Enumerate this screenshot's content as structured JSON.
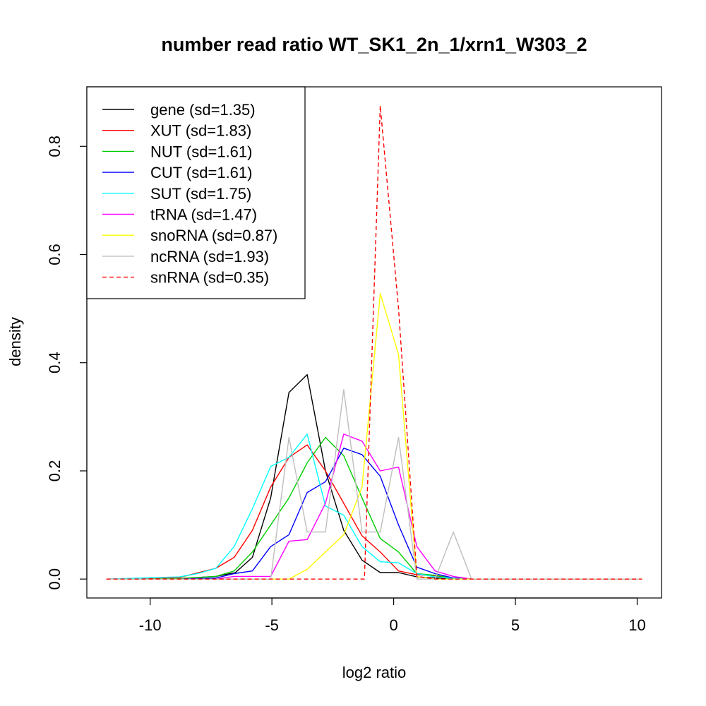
{
  "chart_data": {
    "type": "line",
    "title": "number read ratio WT_SK1_2n_1/xrn1_W303_2",
    "xlabel": "log2 ratio",
    "ylabel": "density",
    "xlim": [
      -12.6,
      11.0
    ],
    "ylim": [
      -0.035,
      0.91
    ],
    "xticks": [
      -10,
      -5,
      0,
      5,
      10
    ],
    "xtick_labels": [
      "-10",
      "-5",
      "0",
      "5",
      "10"
    ],
    "yticks": [
      0.0,
      0.2,
      0.4,
      0.6,
      0.8
    ],
    "ytick_labels": [
      "0.0",
      "0.2",
      "0.4",
      "0.6",
      "0.8"
    ],
    "grid": false,
    "legend_position": "top-left",
    "x": [
      -11.8,
      -11.05,
      -10.3,
      -9.55,
      -8.8,
      -8.05,
      -7.3,
      -6.55,
      -5.8,
      -5.05,
      -4.3,
      -3.55,
      -2.8,
      -2.05,
      -1.3,
      -0.55,
      0.2,
      0.95,
      1.7,
      2.45,
      3.2,
      3.95,
      4.7,
      5.45,
      6.2,
      6.95,
      7.7,
      8.45,
      9.2,
      9.95,
      10.2
    ],
    "series": [
      {
        "name": "gene (sd=1.35)",
        "color": "#000000",
        "dash": "solid",
        "x": [
          -11.8,
          -10,
          -8.8,
          -7.3,
          -6.5,
          -5.8,
          -5.05,
          -4.3,
          -3.55,
          -2.8,
          -2.05,
          -1.3,
          -0.55,
          0.2,
          0.95,
          1.7,
          2.45,
          3.2,
          10.2
        ],
        "values": [
          0.0,
          0.0,
          0.001,
          0.005,
          0.012,
          0.04,
          0.15,
          0.345,
          0.378,
          0.2,
          0.09,
          0.035,
          0.012,
          0.012,
          0.004,
          0.002,
          0.001,
          0.0,
          0.0
        ]
      },
      {
        "name": "XUT (sd=1.83)",
        "color": "#ff0000",
        "dash": "solid",
        "x": [
          -11.8,
          -10.3,
          -8.8,
          -7.3,
          -6.55,
          -5.8,
          -5.05,
          -4.3,
          -3.55,
          -2.8,
          -2.05,
          -1.3,
          -0.55,
          0.2,
          0.95,
          1.7,
          2.45,
          3.2,
          10.2
        ],
        "values": [
          0.0,
          0.001,
          0.003,
          0.02,
          0.04,
          0.09,
          0.17,
          0.225,
          0.248,
          0.2,
          0.14,
          0.08,
          0.05,
          0.015,
          0.008,
          0.006,
          0.002,
          0.0,
          0.0
        ]
      },
      {
        "name": "NUT (sd=1.61)",
        "color": "#00cd00",
        "dash": "solid",
        "x": [
          -11.8,
          -10.3,
          -8.8,
          -7.3,
          -6.55,
          -5.8,
          -5.05,
          -4.3,
          -3.55,
          -2.8,
          -2.05,
          -1.3,
          -0.55,
          0.2,
          0.95,
          1.7,
          2.45,
          3.2,
          10.2
        ],
        "values": [
          0.0,
          0.0,
          0.001,
          0.005,
          0.015,
          0.05,
          0.1,
          0.15,
          0.215,
          0.262,
          0.228,
          0.15,
          0.075,
          0.05,
          0.01,
          0.007,
          0.002,
          0.0,
          0.0
        ]
      },
      {
        "name": "CUT (sd=1.61)",
        "color": "#0000ff",
        "dash": "solid",
        "x": [
          -11.8,
          -10.3,
          -8.8,
          -7.3,
          -6.55,
          -5.8,
          -5.05,
          -4.3,
          -3.55,
          -2.8,
          -2.05,
          -1.3,
          -0.55,
          0.2,
          0.95,
          1.7,
          2.45,
          3.2,
          10.2
        ],
        "values": [
          0.0,
          0.0,
          0.0,
          0.002,
          0.01,
          0.015,
          0.06,
          0.082,
          0.16,
          0.18,
          0.242,
          0.23,
          0.19,
          0.1,
          0.022,
          0.01,
          0.002,
          0.0,
          0.0
        ]
      },
      {
        "name": "SUT (sd=1.75)",
        "color": "#00ffff",
        "dash": "solid",
        "x": [
          -11.8,
          -10.3,
          -8.8,
          -8.05,
          -7.3,
          -6.55,
          -5.8,
          -5.05,
          -4.3,
          -3.55,
          -2.8,
          -2.05,
          -1.3,
          -0.55,
          0.2,
          0.95,
          1.7,
          2.45,
          3.2,
          10.2
        ],
        "values": [
          0.0,
          0.002,
          0.004,
          0.01,
          0.02,
          0.06,
          0.13,
          0.208,
          0.225,
          0.268,
          0.135,
          0.118,
          0.06,
          0.032,
          0.03,
          0.01,
          0.004,
          0.001,
          0.0,
          0.0
        ]
      },
      {
        "name": "tRNA (sd=1.47)",
        "color": "#ff00ff",
        "dash": "solid",
        "x": [
          -11.8,
          -7.3,
          -6.55,
          -5.8,
          -5.05,
          -4.3,
          -3.55,
          -2.8,
          -2.05,
          -1.3,
          -0.55,
          0.2,
          0.95,
          1.7,
          2.45,
          3.2,
          10.2
        ],
        "values": [
          0.0,
          0.0,
          0.005,
          0.005,
          0.005,
          0.07,
          0.073,
          0.14,
          0.268,
          0.255,
          0.2,
          0.207,
          0.06,
          0.015,
          0.005,
          0.0,
          0.0
        ]
      },
      {
        "name": "snoRNA (sd=0.87)",
        "color": "#ffff00",
        "dash": "solid",
        "x": [
          -11.8,
          -5.05,
          -4.3,
          -3.55,
          -2.8,
          -2.05,
          -1.3,
          -0.55,
          0.2,
          0.95,
          1.7,
          2.45,
          3.2,
          10.2
        ],
        "values": [
          0.0,
          0.0,
          0.0,
          0.018,
          0.05,
          0.082,
          0.17,
          0.528,
          0.415,
          0.005,
          0.0,
          0.0,
          0.0,
          0.0
        ]
      },
      {
        "name": "ncRNA (sd=1.93)",
        "color": "#bebebe",
        "dash": "solid",
        "x": [
          -11.8,
          -5.05,
          -4.3,
          -3.55,
          -2.8,
          -2.05,
          -1.3,
          -0.55,
          0.2,
          0.95,
          1.7,
          2.45,
          3.2,
          10.2
        ],
        "values": [
          0.0,
          0.0,
          0.262,
          0.087,
          0.087,
          0.35,
          0.087,
          0.087,
          0.262,
          0.0,
          0.0,
          0.087,
          0.0,
          0.0
        ]
      },
      {
        "name": "snRNA (sd=0.35)",
        "color": "#ff0000",
        "dash": "dashed",
        "x": [
          -11.8,
          -1.3,
          -1.2,
          -0.55,
          0.2,
          0.95,
          1.7,
          10.2
        ],
        "values": [
          0.0,
          0.0,
          0.0,
          0.875,
          0.5,
          0.005,
          0.0,
          0.0
        ]
      }
    ]
  }
}
